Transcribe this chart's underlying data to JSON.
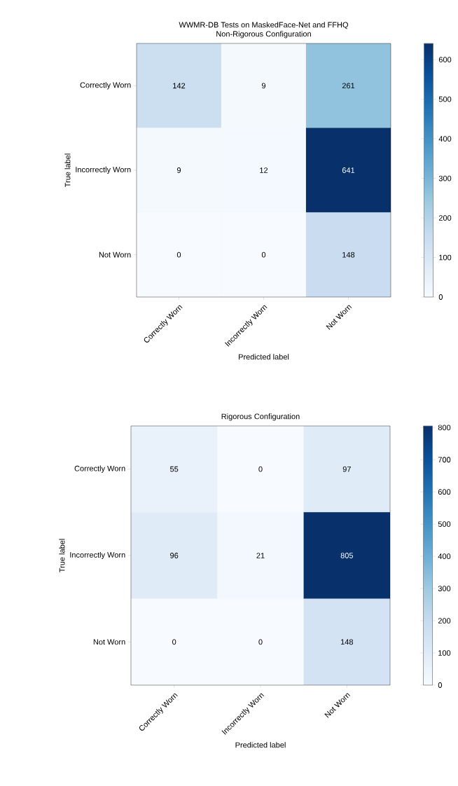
{
  "chart_data": [
    {
      "type": "heatmap",
      "title": "WWMR-DB Tests on MaskedFace-Net and FFHQ",
      "subtitle": "Non-Rigorous Configuration",
      "xlabel": "Predicted label",
      "ylabel": "True label",
      "categories": [
        "Correctly Worn",
        "Incorrectly Worn",
        "Not Worn"
      ],
      "y_categories": [
        "Correctly Worn",
        "Incorrectly Worn",
        "Not Worn"
      ],
      "cells": [
        [
          142,
          9,
          261
        ],
        [
          9,
          12,
          641
        ],
        [
          0,
          0,
          148
        ]
      ],
      "clim": [
        0,
        641
      ],
      "cticks": [
        0,
        100,
        200,
        300,
        400,
        500,
        600
      ],
      "data_labels": true
    },
    {
      "type": "heatmap",
      "title": "Rigorous Configuration",
      "xlabel": "Predicted label",
      "ylabel": "True label",
      "categories": [
        "Correctly Worn",
        "Incorrectly Worn",
        "Not Worn"
      ],
      "y_categories": [
        "Correctly Worn",
        "Incorrectly Worn",
        "Not Worn"
      ],
      "cells": [
        [
          55,
          0,
          97
        ],
        [
          96,
          21,
          805
        ],
        [
          0,
          0,
          148
        ]
      ],
      "clim": [
        0,
        805
      ],
      "cticks": [
        0,
        100,
        200,
        300,
        400,
        500,
        600,
        700,
        800
      ],
      "data_labels": true
    }
  ]
}
